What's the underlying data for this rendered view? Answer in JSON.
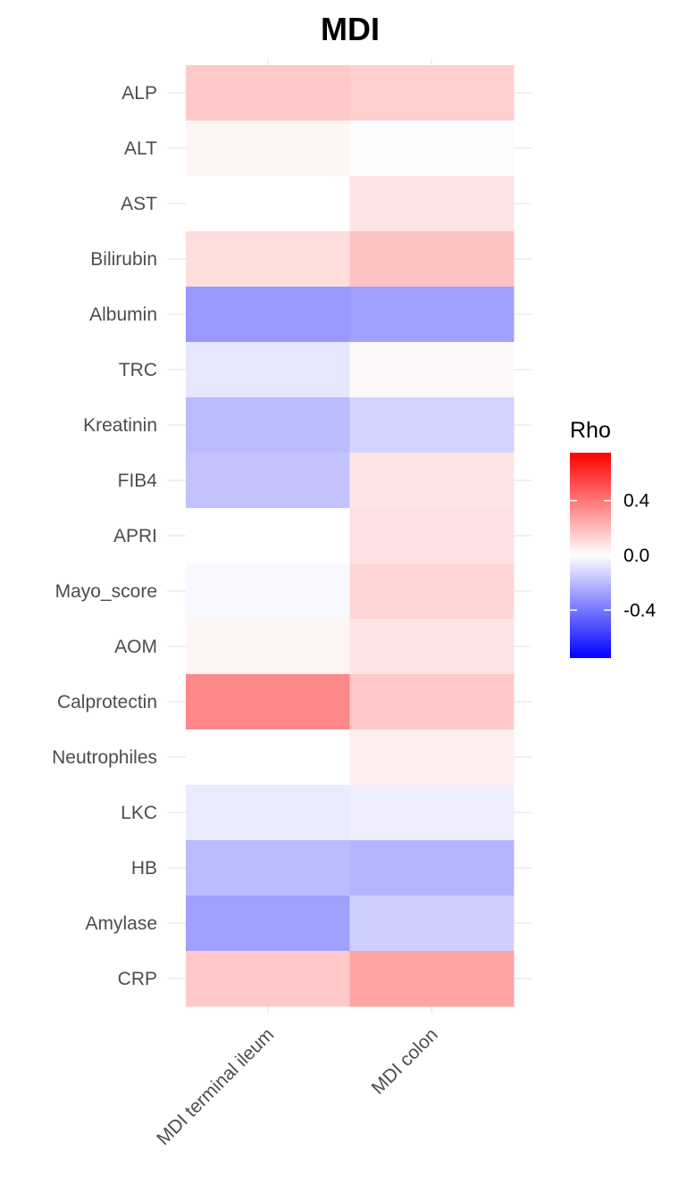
{
  "chart_data": {
    "type": "heatmap",
    "title": "MDI",
    "xlabel": "",
    "ylabel": "",
    "x_categories": [
      "MDI terminal ileum",
      "MDI colon"
    ],
    "y_categories": [
      "ALP",
      "ALT",
      "AST",
      "Bilirubin",
      "Albumin",
      "TRC",
      "Kreatinin",
      "FIB4",
      "APRI",
      "Mayo_score",
      "AOM",
      "Calprotectin",
      "Neutrophiles",
      "LKC",
      "HB",
      "Amylase",
      "CRP"
    ],
    "values": [
      [
        0.16,
        0.14
      ],
      [
        0.03,
        -0.01
      ],
      [
        0.0,
        0.08
      ],
      [
        0.1,
        0.18
      ],
      [
        -0.3,
        -0.28
      ],
      [
        -0.07,
        0.02
      ],
      [
        -0.2,
        -0.13
      ],
      [
        -0.18,
        0.08
      ],
      [
        0.0,
        0.09
      ],
      [
        -0.02,
        0.12
      ],
      [
        0.03,
        0.08
      ],
      [
        0.35,
        0.16
      ],
      [
        0.0,
        0.05
      ],
      [
        -0.06,
        -0.05
      ],
      [
        -0.2,
        -0.22
      ],
      [
        -0.28,
        -0.14
      ],
      [
        0.16,
        0.27
      ]
    ],
    "legend": {
      "title": "Rho",
      "ticks": [
        0.4,
        0.0,
        -0.4
      ],
      "tick_labels": [
        "0.4",
        "0.0",
        "-0.4"
      ],
      "limits": [
        -0.75,
        0.75
      ],
      "low_color": "#0000ff",
      "mid_color": "#ffffff",
      "high_color": "#ff0000",
      "position": "right"
    },
    "grid": true
  }
}
